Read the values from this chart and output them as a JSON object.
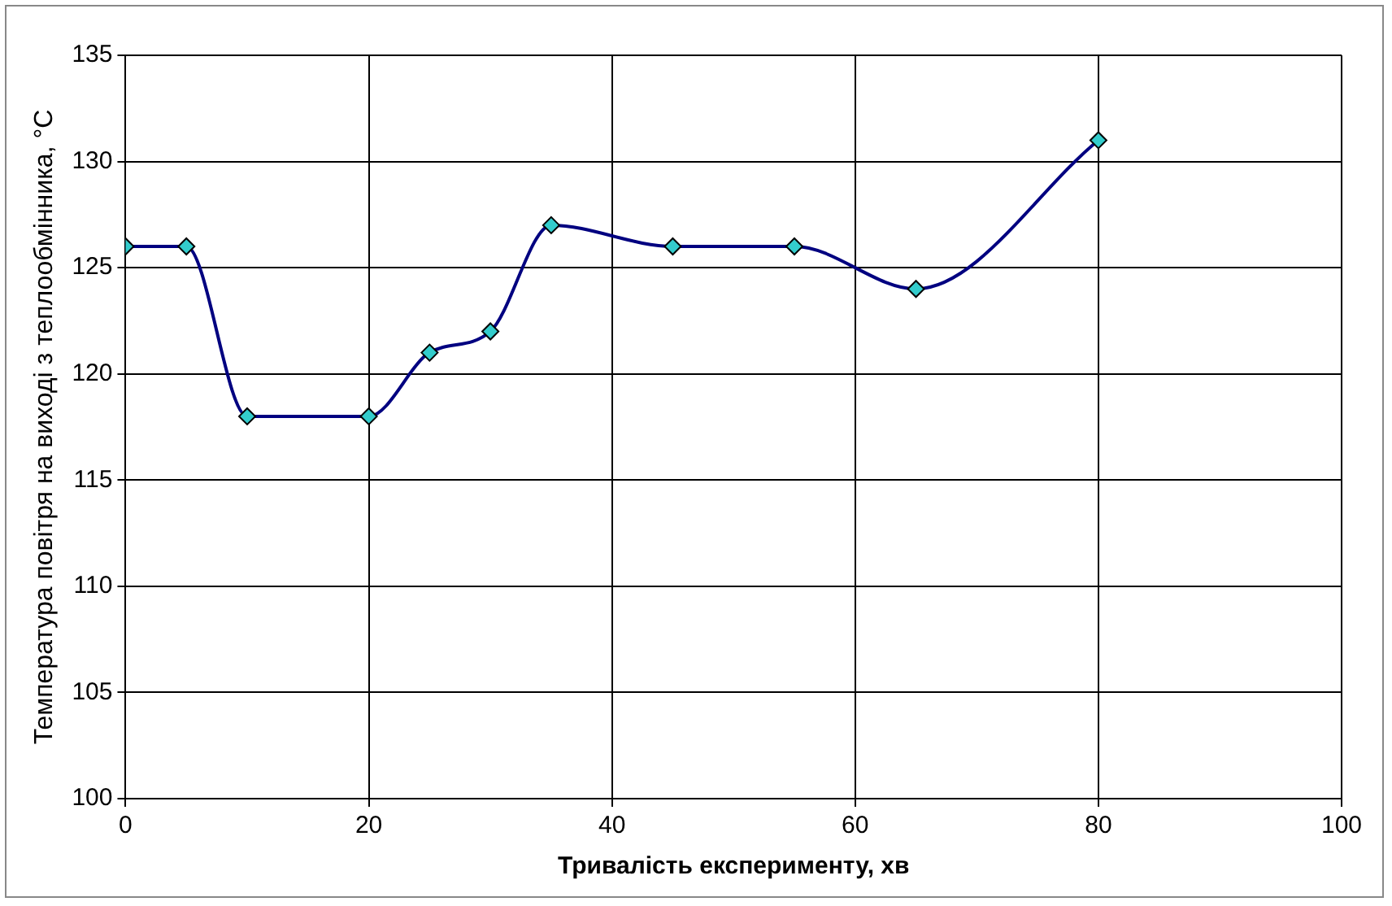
{
  "chart_data": {
    "type": "line",
    "xlabel": "Тривалість експерименту, хв",
    "ylabel": "Температура повітря на виході з теплообмінника, °C",
    "x": [
      0,
      5,
      10,
      20,
      25,
      30,
      35,
      45,
      55,
      65,
      80
    ],
    "series": [
      {
        "color": "#000080",
        "colors": [
          "#33cccc",
          "#33cccc",
          "#33cccc",
          "#33cccc",
          "#33cccc",
          "#33cccc",
          "#33cccc",
          "#33cccc",
          "#33cccc",
          "#33cccc",
          "#33cccc"
        ],
        "values": [
          126,
          126,
          118,
          118,
          121,
          122,
          127,
          126,
          126,
          124,
          131
        ]
      }
    ],
    "xlim": [
      0,
      100
    ],
    "xticks": [
      0,
      20,
      40,
      60,
      80,
      100
    ],
    "ylim": [
      100,
      135
    ],
    "yticks": [
      100,
      105,
      110,
      115,
      120,
      125,
      130,
      135
    ],
    "grid": true,
    "legend": false,
    "marker": "diamond",
    "line_style": "solid"
  }
}
